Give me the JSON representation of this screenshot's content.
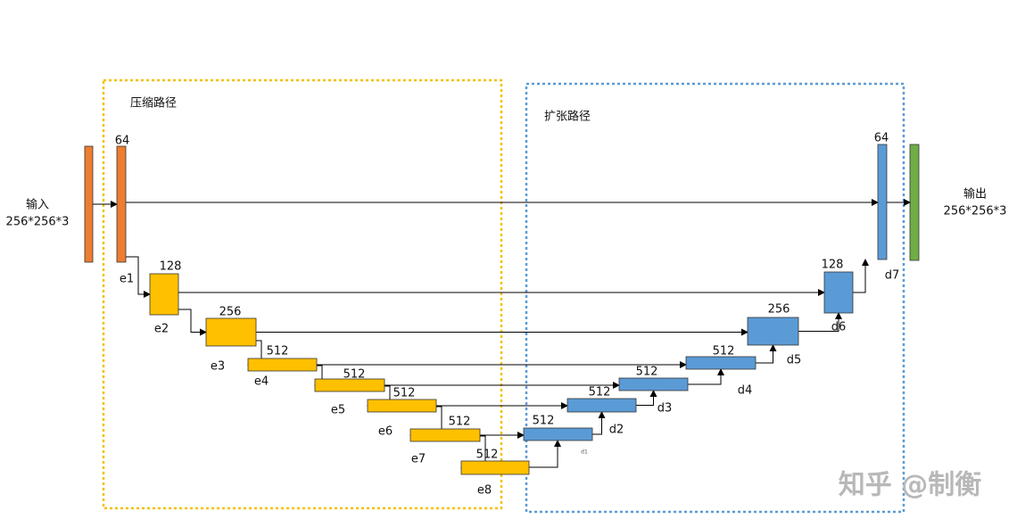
{
  "regions": {
    "encoder": "压缩路径",
    "decoder": "扩张路径"
  },
  "input": {
    "label": "输入",
    "size": "256*256*3"
  },
  "output": {
    "label": "输出",
    "size": "256*256*3"
  },
  "encoder": [
    {
      "channels": 64,
      "name": "e1"
    },
    {
      "channels": 128,
      "name": "e2"
    },
    {
      "channels": 256,
      "name": "e3"
    },
    {
      "channels": 512,
      "name": "e4"
    },
    {
      "channels": 512,
      "name": "e5"
    },
    {
      "channels": 512,
      "name": "e6"
    },
    {
      "channels": 512,
      "name": "e7"
    },
    {
      "channels": 512,
      "name": "e8"
    }
  ],
  "decoder": [
    {
      "channels": 512,
      "name": "d1"
    },
    {
      "channels": 512,
      "name": "d2"
    },
    {
      "channels": 512,
      "name": "d3"
    },
    {
      "channels": 512,
      "name": "d4"
    },
    {
      "channels": 256,
      "name": "d5"
    },
    {
      "channels": 128,
      "name": "d6"
    },
    {
      "channels": 64,
      "name": "d7"
    }
  ],
  "watermark": "知乎 @制衡"
}
